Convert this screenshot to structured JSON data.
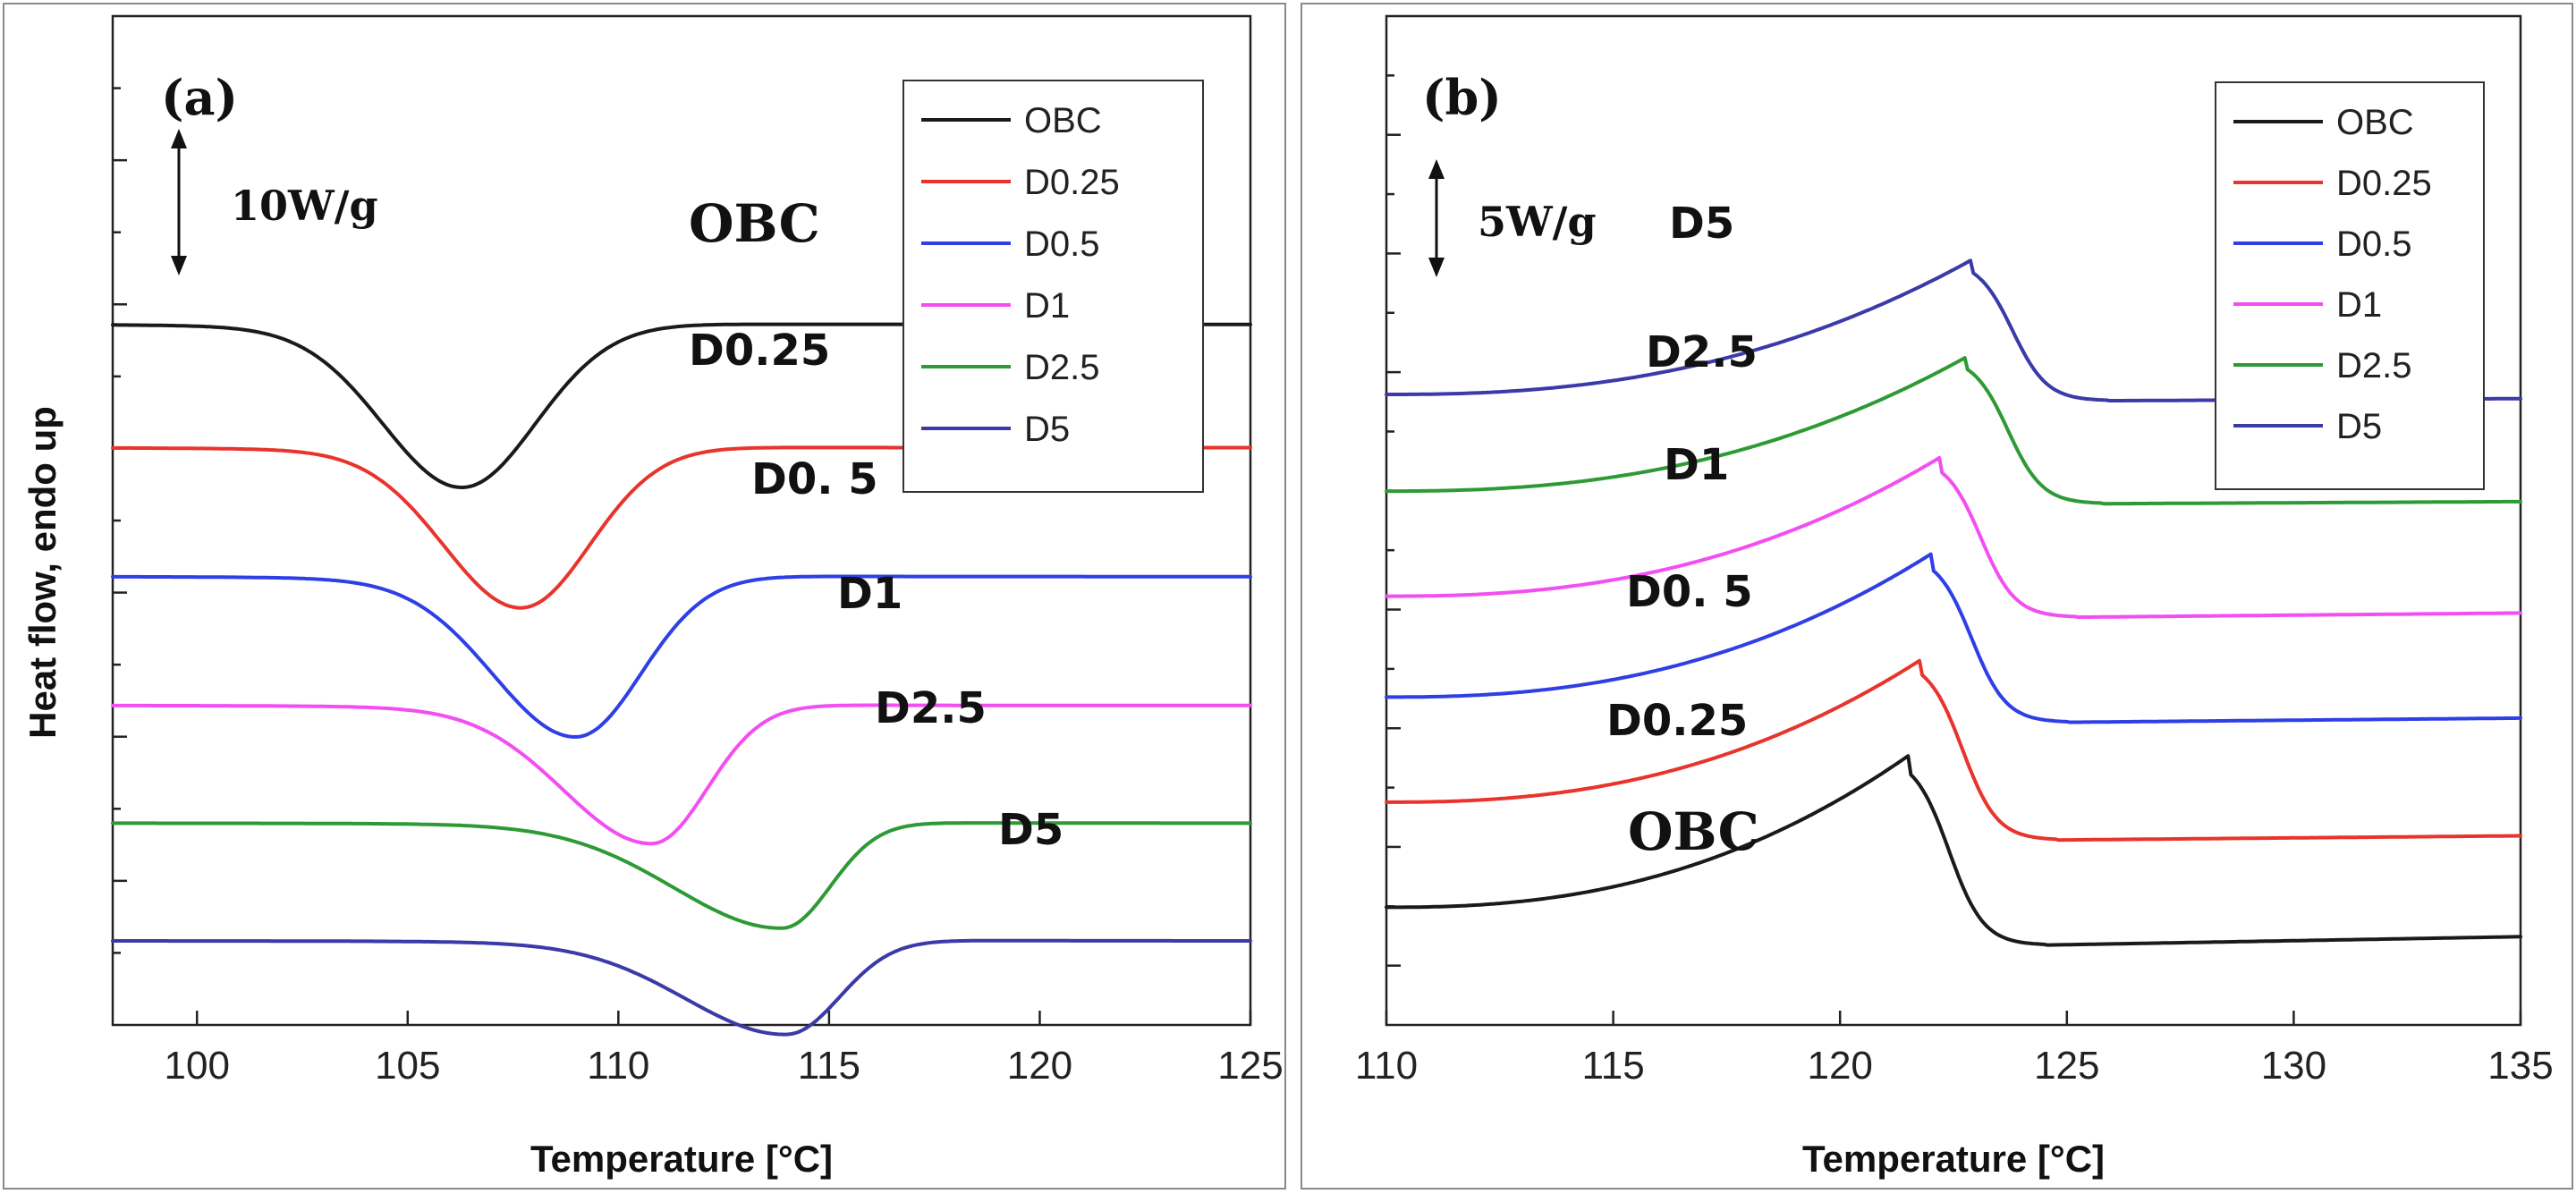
{
  "chart_data": [
    {
      "type": "line",
      "panel": "(a)",
      "scale_bar": "10W/g",
      "xlabel": "Temperature [°C]",
      "ylabel": "Heat flow, endo up",
      "xlim": [
        98,
        125
      ],
      "xticks": [
        100,
        105,
        110,
        115,
        120,
        125
      ],
      "grid": false,
      "legend_position": "top-right",
      "legend": [
        "OBC",
        "D0.25",
        "D0.5",
        "D1",
        "D2.5",
        "D5"
      ],
      "curve_labels": [
        "OBC",
        "D0.25",
        "D0. 5",
        "D1",
        "D2.5",
        "D5"
      ],
      "series": [
        {
          "name": "OBC",
          "color": "#1a1a1a",
          "baseline": 0.0,
          "peak_T": 106.3,
          "depth": 2.8,
          "start_T": 102.0,
          "end_T": 112.0
        },
        {
          "name": "D0.25",
          "color": "#e8342c",
          "baseline": -2.2,
          "peak_T": 107.7,
          "depth": 2.75,
          "start_T": 103.5,
          "end_T": 113.0
        },
        {
          "name": "D0.5",
          "color": "#2f3fe6",
          "baseline": -4.5,
          "peak_T": 109.0,
          "depth": 2.75,
          "start_T": 104.5,
          "end_T": 114.0
        },
        {
          "name": "D1",
          "color": "#f24ef2",
          "baseline": -6.8,
          "peak_T": 110.8,
          "depth": 2.35,
          "start_T": 106.0,
          "end_T": 115.0
        },
        {
          "name": "D2.5",
          "color": "#2e9a35",
          "baseline": -8.9,
          "peak_T": 113.9,
          "depth": 1.75,
          "start_T": 108.0,
          "end_T": 117.5
        },
        {
          "name": "D5",
          "color": "#3a3aa8",
          "baseline": -11.0,
          "peak_T": 114.0,
          "depth": 1.55,
          "start_T": 108.5,
          "end_T": 118.0
        }
      ]
    },
    {
      "type": "line",
      "panel": "(b)",
      "scale_bar": "5W/g",
      "xlabel": "Temperature [°C]",
      "ylabel": "",
      "xlim": [
        110,
        135
      ],
      "xticks": [
        110,
        115,
        120,
        125,
        130,
        135
      ],
      "grid": false,
      "legend_position": "top-right",
      "legend": [
        "OBC",
        "D0.25",
        "D0.5",
        "D1",
        "D2.5",
        "D5"
      ],
      "curve_labels": [
        "OBC",
        "D0.25",
        "D0. 5",
        "D1",
        "D2.5",
        "D5"
      ],
      "series": [
        {
          "name": "OBC",
          "color": "#1a1a1a",
          "start": -11.2,
          "peak_T": 121.5,
          "peak": -7.6,
          "after": -12.1,
          "end": -11.9
        },
        {
          "name": "D0.25",
          "color": "#e8342c",
          "start": -8.7,
          "peak_T": 121.8,
          "peak": -5.3,
          "after": -9.6,
          "end": -9.5
        },
        {
          "name": "D0.5",
          "color": "#2f3fe6",
          "start": -6.2,
          "peak_T": 122.0,
          "peak": -2.8,
          "after": -6.8,
          "end": -6.7
        },
        {
          "name": "D1",
          "color": "#f24ef2",
          "start": -3.8,
          "peak_T": 122.2,
          "peak": -0.5,
          "after": -4.3,
          "end": -4.2
        },
        {
          "name": "D2.5",
          "color": "#2e9a35",
          "start": -1.3,
          "peak_T": 122.8,
          "peak": 1.9,
          "after": -1.6,
          "end": -1.55
        },
        {
          "name": "D5",
          "color": "#3a3aa8",
          "start": 1.0,
          "peak_T": 122.9,
          "peak": 4.2,
          "after": 0.85,
          "end": 0.9
        }
      ]
    }
  ]
}
